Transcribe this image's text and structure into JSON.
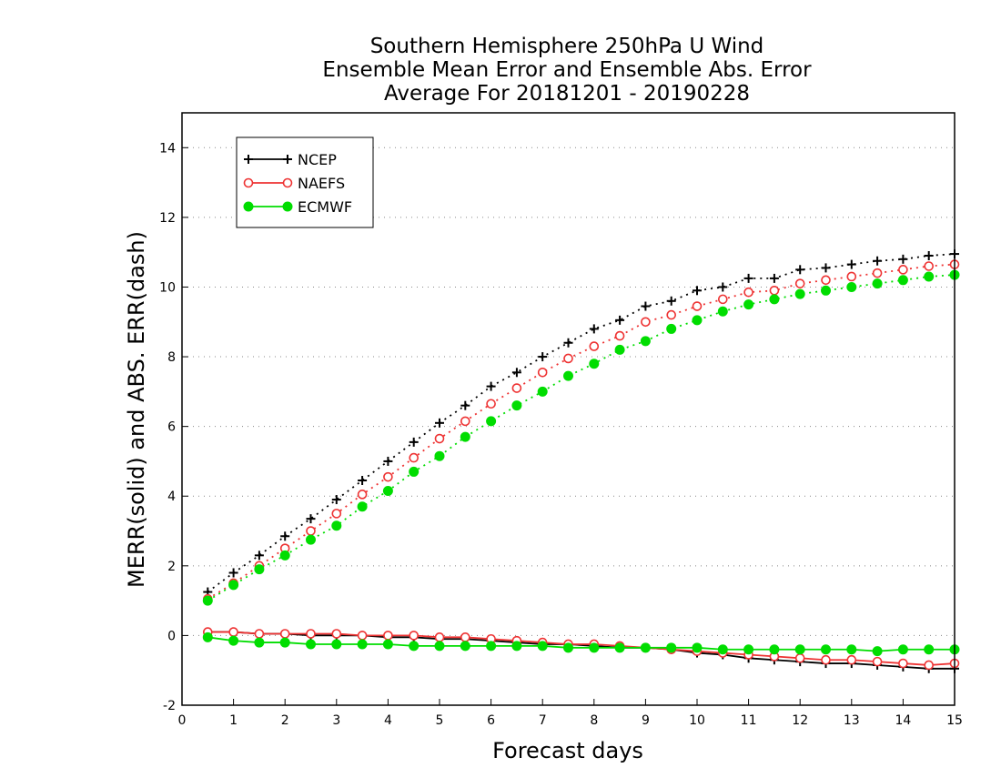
{
  "chart_data": {
    "type": "line",
    "title": [
      "Southern Hemisphere 250hPa U Wind",
      "Ensemble Mean Error and Ensemble Abs. Error",
      "Average For 20181201 - 20190228"
    ],
    "xlabel": "Forecast days",
    "ylabel": "MERR(solid) and ABS. ERR(dash)",
    "xlim": [
      0,
      15
    ],
    "ylim": [
      -2,
      15
    ],
    "xticks": [
      "0",
      "1",
      "2",
      "3",
      "4",
      "5",
      "6",
      "7",
      "8",
      "9",
      "10",
      "11",
      "12",
      "13",
      "14",
      "15"
    ],
    "yticks": [
      "-2",
      "0",
      "2",
      "4",
      "6",
      "8",
      "10",
      "12",
      "14"
    ],
    "grid": "horizontal dotted",
    "legend_position": "top-left",
    "x": [
      0.5,
      1,
      1.5,
      2,
      2.5,
      3,
      3.5,
      4,
      4.5,
      5,
      5.5,
      6,
      6.5,
      7,
      7.5,
      8,
      8.5,
      9,
      9.5,
      10,
      10.5,
      11,
      11.5,
      12,
      12.5,
      13,
      13.5,
      14,
      14.5,
      15
    ],
    "series": [
      {
        "name": "NCEP",
        "color": "#000000",
        "marker": "plus",
        "abs_error": [
          1.25,
          1.8,
          2.3,
          2.85,
          3.35,
          3.9,
          4.45,
          5.0,
          5.55,
          6.1,
          6.6,
          7.15,
          7.55,
          8.0,
          8.4,
          8.8,
          9.05,
          9.45,
          9.6,
          9.9,
          10.0,
          10.25,
          10.25,
          10.5,
          10.55,
          10.65,
          10.75,
          10.8,
          10.9,
          10.95
        ],
        "mean_error": [
          0.1,
          0.1,
          0.05,
          0.05,
          0.0,
          0.0,
          0.0,
          -0.05,
          -0.05,
          -0.1,
          -0.1,
          -0.15,
          -0.2,
          -0.25,
          -0.25,
          -0.3,
          -0.35,
          -0.35,
          -0.4,
          -0.5,
          -0.55,
          -0.65,
          -0.7,
          -0.75,
          -0.8,
          -0.8,
          -0.85,
          -0.9,
          -0.95,
          -0.95
        ]
      },
      {
        "name": "NAEFS",
        "color": "#ee3333",
        "marker": "open-circle",
        "abs_error": [
          1.05,
          1.5,
          2.0,
          2.5,
          3.0,
          3.5,
          4.05,
          4.55,
          5.1,
          5.65,
          6.15,
          6.65,
          7.1,
          7.55,
          7.95,
          8.3,
          8.6,
          9.0,
          9.2,
          9.45,
          9.65,
          9.85,
          9.9,
          10.1,
          10.2,
          10.3,
          10.4,
          10.5,
          10.6,
          10.65
        ],
        "mean_error": [
          0.1,
          0.1,
          0.05,
          0.05,
          0.05,
          0.05,
          0.0,
          0.0,
          0.0,
          -0.05,
          -0.05,
          -0.1,
          -0.15,
          -0.2,
          -0.25,
          -0.25,
          -0.3,
          -0.35,
          -0.4,
          -0.45,
          -0.5,
          -0.55,
          -0.6,
          -0.65,
          -0.7,
          -0.7,
          -0.75,
          -0.8,
          -0.85,
          -0.8
        ]
      },
      {
        "name": "ECMWF",
        "color": "#00dd00",
        "marker": "filled-circle",
        "abs_error": [
          1.0,
          1.45,
          1.9,
          2.3,
          2.75,
          3.15,
          3.7,
          4.15,
          4.7,
          5.15,
          5.7,
          6.15,
          6.6,
          7.0,
          7.45,
          7.8,
          8.2,
          8.45,
          8.8,
          9.05,
          9.3,
          9.5,
          9.65,
          9.8,
          9.9,
          10.0,
          10.1,
          10.2,
          10.3,
          10.35
        ],
        "mean_error": [
          -0.05,
          -0.15,
          -0.2,
          -0.2,
          -0.25,
          -0.25,
          -0.25,
          -0.25,
          -0.3,
          -0.3,
          -0.3,
          -0.3,
          -0.3,
          -0.3,
          -0.35,
          -0.35,
          -0.35,
          -0.35,
          -0.35,
          -0.35,
          -0.4,
          -0.4,
          -0.4,
          -0.4,
          -0.4,
          -0.4,
          -0.45,
          -0.4,
          -0.4,
          -0.4
        ]
      }
    ]
  }
}
